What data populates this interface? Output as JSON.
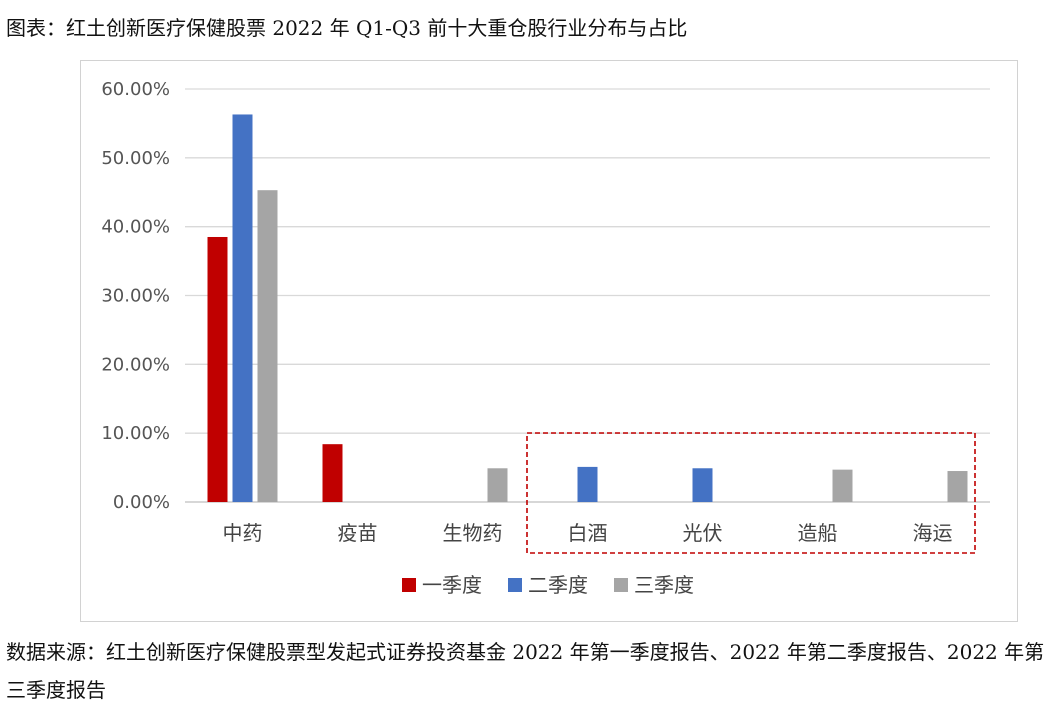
{
  "figure_title": "图表：红土创新医疗保健股票 2022 年 Q1-Q3 前十大重仓股行业分布与占比",
  "source": "数据来源：红土创新医疗保健股票型发起式证券投资基金 2022 年第一季度报告、2022 年第二季度报告、2022 年第三季度报告",
  "chart_data": {
    "type": "bar",
    "categories": [
      "中药",
      "疫苗",
      "生物药",
      "白酒",
      "光伏",
      "造船",
      "海运"
    ],
    "series": [
      {
        "name": "一季度",
        "color": "#C00000",
        "values": [
          38.5,
          8.4,
          null,
          null,
          null,
          null,
          null
        ]
      },
      {
        "name": "二季度",
        "color": "#4472C4",
        "values": [
          56.3,
          null,
          null,
          5.1,
          4.9,
          null,
          null
        ]
      },
      {
        "name": "三季度",
        "color": "#A5A5A5",
        "values": [
          45.3,
          null,
          4.9,
          null,
          null,
          4.7,
          4.5
        ]
      }
    ],
    "yticks": [
      "0.00%",
      "10.00%",
      "20.00%",
      "30.00%",
      "40.00%",
      "50.00%",
      "60.00%"
    ],
    "ylim": [
      0,
      60
    ],
    "y_unit": "%",
    "grid": true,
    "legend_position": "bottom",
    "annotation": {
      "style": "dashed red box",
      "color": "#C00000",
      "categories": [
        "白酒",
        "光伏",
        "造船",
        "海运"
      ]
    }
  }
}
